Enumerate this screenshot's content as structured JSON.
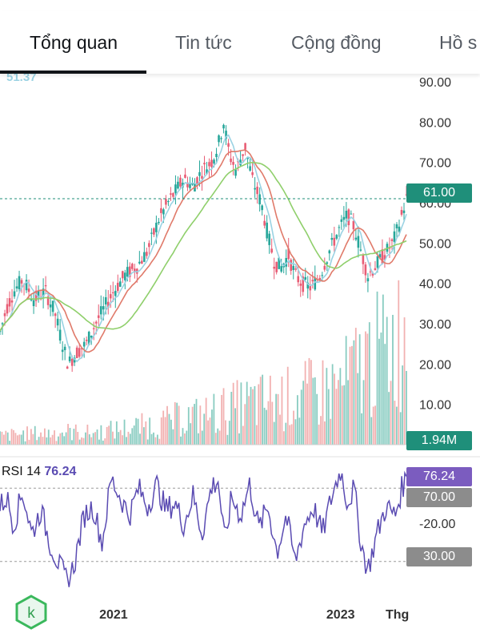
{
  "tabs": [
    {
      "label": "Tổng quan",
      "active": true
    },
    {
      "label": "Tin tức",
      "active": false
    },
    {
      "label": "Cộng đồng",
      "active": false
    },
    {
      "label": "Hồ s",
      "active": false
    }
  ],
  "logo": {
    "letter": "k",
    "color": "#3ab85c"
  },
  "colors": {
    "price_up": "#26a69a",
    "price_down": "#e85d75",
    "ma_fast": "#9ad2e3",
    "ma_mid": "#e07a6a",
    "ma_slow": "#8fcf6b",
    "rsi_line": "#5a4bb2",
    "rsi_badge": "#7b5cbf",
    "price_badge": "#1f8f7a",
    "gray_badge": "#8c8c8c",
    "volume_up": "#74c3b6",
    "volume_down": "#f0a3a3"
  },
  "chart_data": {
    "type": "candlestick",
    "price_axis": {
      "ticks": [
        "90.00",
        "80.00",
        "70.00",
        "60.00",
        "50.00",
        "40.00",
        "30.00",
        "20.00",
        "10.00"
      ],
      "ylim": [
        0,
        92
      ]
    },
    "x_axis": {
      "ticks": [
        "2021",
        "2023",
        "Thg"
      ]
    },
    "top_left_value": "51.37",
    "last_price_label": "61.00",
    "last_price": 61,
    "volume_label": "1.94M",
    "price_series": [
      [
        2020.0,
        28
      ],
      [
        2020.06,
        34
      ],
      [
        2020.12,
        38
      ],
      [
        2020.2,
        41
      ],
      [
        2020.3,
        36
      ],
      [
        2020.4,
        38
      ],
      [
        2020.48,
        33
      ],
      [
        2020.55,
        25
      ],
      [
        2020.6,
        20
      ],
      [
        2020.68,
        23
      ],
      [
        2020.76,
        25
      ],
      [
        2020.84,
        30
      ],
      [
        2020.92,
        34
      ],
      [
        2021.0,
        38
      ],
      [
        2021.1,
        42
      ],
      [
        2021.2,
        44
      ],
      [
        2021.3,
        48
      ],
      [
        2021.4,
        56
      ],
      [
        2021.48,
        60
      ],
      [
        2021.55,
        63
      ],
      [
        2021.62,
        66
      ],
      [
        2021.7,
        64
      ],
      [
        2021.78,
        68
      ],
      [
        2021.86,
        70
      ],
      [
        2021.92,
        74
      ],
      [
        2021.97,
        80
      ],
      [
        2022.02,
        72
      ],
      [
        2022.08,
        68
      ],
      [
        2022.16,
        74
      ],
      [
        2022.22,
        66
      ],
      [
        2022.3,
        60
      ],
      [
        2022.36,
        52
      ],
      [
        2022.42,
        45
      ],
      [
        2022.48,
        44
      ],
      [
        2022.54,
        47
      ],
      [
        2022.6,
        42
      ],
      [
        2022.66,
        40
      ],
      [
        2022.74,
        39
      ],
      [
        2022.82,
        42
      ],
      [
        2022.9,
        48
      ],
      [
        2022.98,
        53
      ],
      [
        2023.06,
        57
      ],
      [
        2023.12,
        54
      ],
      [
        2023.18,
        48
      ],
      [
        2023.24,
        42
      ],
      [
        2023.3,
        44
      ],
      [
        2023.38,
        47
      ],
      [
        2023.46,
        50
      ],
      [
        2023.52,
        55
      ],
      [
        2023.58,
        61
      ]
    ],
    "volume_series": [
      [
        2020.0,
        0.15
      ],
      [
        2020.2,
        0.18
      ],
      [
        2020.4,
        0.2
      ],
      [
        2020.6,
        0.22
      ],
      [
        2020.8,
        0.2
      ],
      [
        2021.0,
        0.25
      ],
      [
        2021.2,
        0.3
      ],
      [
        2021.4,
        0.35
      ],
      [
        2021.6,
        0.45
      ],
      [
        2021.8,
        0.5
      ],
      [
        2022.0,
        0.6
      ],
      [
        2022.2,
        0.7
      ],
      [
        2022.4,
        0.75
      ],
      [
        2022.6,
        0.8
      ],
      [
        2022.8,
        0.9
      ],
      [
        2023.0,
        1.0
      ],
      [
        2023.2,
        1.4
      ],
      [
        2023.4,
        1.6
      ],
      [
        2023.58,
        1.94
      ]
    ],
    "rsi": {
      "label": "RSI 14",
      "value": "76.24",
      "value_num": 76.24,
      "levels": [
        "70.00",
        "30.00"
      ],
      "axis_label": "-20.00",
      "ylim": [
        15,
        85
      ],
      "series": [
        [
          2020.0,
          60
        ],
        [
          2020.06,
          65
        ],
        [
          2020.12,
          50
        ],
        [
          2020.2,
          68
        ],
        [
          2020.28,
          45
        ],
        [
          2020.36,
          58
        ],
        [
          2020.44,
          40
        ],
        [
          2020.52,
          28
        ],
        [
          2020.6,
          18
        ],
        [
          2020.66,
          30
        ],
        [
          2020.74,
          55
        ],
        [
          2020.82,
          60
        ],
        [
          2020.9,
          40
        ],
        [
          2020.98,
          75
        ],
        [
          2021.06,
          65
        ],
        [
          2021.14,
          55
        ],
        [
          2021.22,
          70
        ],
        [
          2021.3,
          60
        ],
        [
          2021.38,
          72
        ],
        [
          2021.46,
          58
        ],
        [
          2021.54,
          62
        ],
        [
          2021.62,
          50
        ],
        [
          2021.7,
          66
        ],
        [
          2021.78,
          45
        ],
        [
          2021.86,
          70
        ],
        [
          2021.92,
          75
        ],
        [
          2021.98,
          40
        ],
        [
          2022.04,
          65
        ],
        [
          2022.12,
          55
        ],
        [
          2022.2,
          72
        ],
        [
          2022.28,
          48
        ],
        [
          2022.36,
          60
        ],
        [
          2022.44,
          35
        ],
        [
          2022.52,
          55
        ],
        [
          2022.6,
          30
        ],
        [
          2022.68,
          50
        ],
        [
          2022.76,
          60
        ],
        [
          2022.84,
          45
        ],
        [
          2022.92,
          65
        ],
        [
          2023.0,
          80
        ],
        [
          2023.06,
          62
        ],
        [
          2023.12,
          70
        ],
        [
          2023.18,
          40
        ],
        [
          2023.24,
          25
        ],
        [
          2023.32,
          45
        ],
        [
          2023.4,
          60
        ],
        [
          2023.48,
          55
        ],
        [
          2023.54,
          70
        ],
        [
          2023.58,
          76
        ]
      ]
    }
  }
}
